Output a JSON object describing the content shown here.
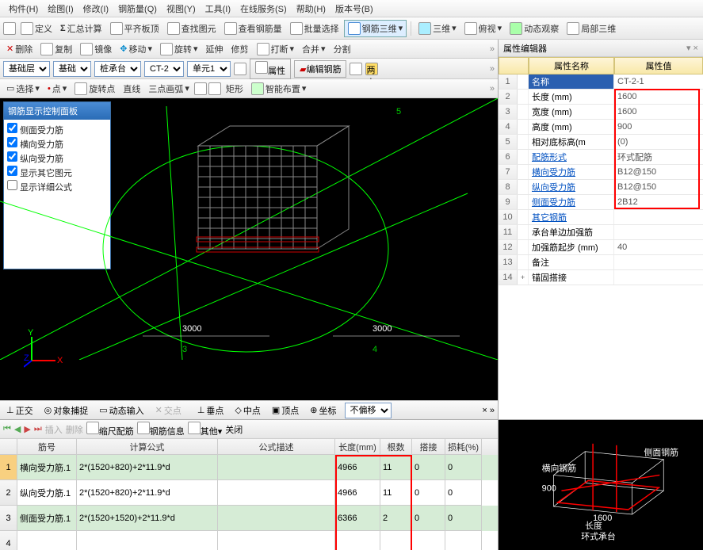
{
  "menu": [
    "构件(H)",
    "绘图(I)",
    "修改(I)",
    "钢筋量(Q)",
    "视图(Y)",
    "工具(I)",
    "在线服务(S)",
    "帮助(H)",
    "版本号(B)"
  ],
  "tb1": {
    "def": "定义",
    "sum": "汇总计算",
    "pq": "平齐板顶",
    "find": "查找图元",
    "rebar": "查看钢筋量",
    "batch": "批量选择",
    "r3d": "钢筋三维",
    "v3d": "三维",
    "fv": "俯视",
    "dyn": "动态观察",
    "loc3d": "局部三维"
  },
  "tb2": {
    "sel": "选择",
    "pt": "点",
    "rot": "旋转点",
    "line": "直线",
    "arc": "三点画弧",
    "rect": "矩形",
    "smart": "智能布置"
  },
  "tb3": {
    "del": "删除",
    "copy": "复制",
    "mir": "镜像",
    "move": "移动",
    "rot": "旋转",
    "ext": "延伸",
    "trim": "修剪",
    "brk": "打断",
    "merge": "合并",
    "split": "分割"
  },
  "sels": {
    "s1": "基础层",
    "s2": "基础",
    "s3": "桩承台",
    "s4": "CT-2",
    "s5": "单元1",
    "btn_attr": "属性",
    "btn_edit": "编辑钢筋"
  },
  "panel": {
    "title": "钢筋显示控制面板",
    "items": [
      "侧面受力筋",
      "横向受力筋",
      "纵向受力筋",
      "显示其它图元",
      "显示详细公式"
    ]
  },
  "dims": {
    "d1": "3000",
    "d2": "3000"
  },
  "status": {
    "ortho": "正交",
    "snap": "对象捕捉",
    "dyn": "动态输入",
    "cross": "交点",
    "perp": "垂点",
    "mid": "中点",
    "vert": "顶点",
    "coord": "坐标",
    "nobias": "不偏移"
  },
  "prop": {
    "title": "属性编辑器",
    "h1": "属性名称",
    "h2": "属性值",
    "rows": [
      {
        "n": "1",
        "name": "名称",
        "val": "CT-2-1",
        "hl": true
      },
      {
        "n": "2",
        "name": "长度 (mm)",
        "val": "1600"
      },
      {
        "n": "3",
        "name": "宽度 (mm)",
        "val": "1600"
      },
      {
        "n": "4",
        "name": "高度 (mm)",
        "val": "900"
      },
      {
        "n": "5",
        "name": "相对底标高(m",
        "val": "(0)"
      },
      {
        "n": "6",
        "name": "配筋形式",
        "val": "环式配筋",
        "link": true
      },
      {
        "n": "7",
        "name": "横向受力筋",
        "val": "B12@150",
        "link": true
      },
      {
        "n": "8",
        "name": "纵向受力筋",
        "val": "B12@150",
        "link": true
      },
      {
        "n": "9",
        "name": "侧面受力筋",
        "val": "2B12",
        "link": true
      },
      {
        "n": "10",
        "name": "其它钢筋",
        "val": "",
        "link": true
      },
      {
        "n": "11",
        "name": "承台单边加强筋",
        "val": ""
      },
      {
        "n": "12",
        "name": "加强筋起步 (mm)",
        "val": "40"
      },
      {
        "n": "13",
        "name": "备注",
        "val": ""
      },
      {
        "n": "14",
        "name": "锚固搭接",
        "val": "",
        "exp": "+"
      }
    ]
  },
  "bot_tb": {
    "ins": "插入",
    "del": "删除",
    "scale": "缩尺配筋",
    "rebar": "钢筋信息",
    "other": "其他",
    "close": "关闭"
  },
  "calc": {
    "hdr": {
      "jh": "筋号",
      "gs": "计算公式",
      "ms": "公式描述",
      "cd": "长度(mm)",
      "gs2": "根数",
      "dj": "搭接",
      "sh": "损耗(%)"
    },
    "rows": [
      {
        "n": "1",
        "jh": "横向受力筋.1",
        "gs": "2*(1520+820)+2*11.9*d",
        "ms": "",
        "cd": "4966",
        "gs2": "11",
        "dj": "0",
        "sh": "0"
      },
      {
        "n": "2",
        "jh": "纵向受力筋.1",
        "gs": "2*(1520+820)+2*11.9*d",
        "ms": "",
        "cd": "4966",
        "gs2": "11",
        "dj": "0",
        "sh": "0"
      },
      {
        "n": "3",
        "jh": "侧面受力筋.1",
        "gs": "2*(1520+1520)+2*11.9*d",
        "ms": "",
        "cd": "6366",
        "gs2": "2",
        "dj": "0",
        "sh": "0"
      },
      {
        "n": "4",
        "jh": "",
        "gs": "",
        "ms": "",
        "cd": "",
        "gs2": "",
        "dj": "",
        "sh": ""
      }
    ]
  },
  "diag": {
    "title": "环式承台",
    "len": "长度",
    "w": "1600",
    "side": "侧面钢筋",
    "hx": "横向钢筋"
  }
}
